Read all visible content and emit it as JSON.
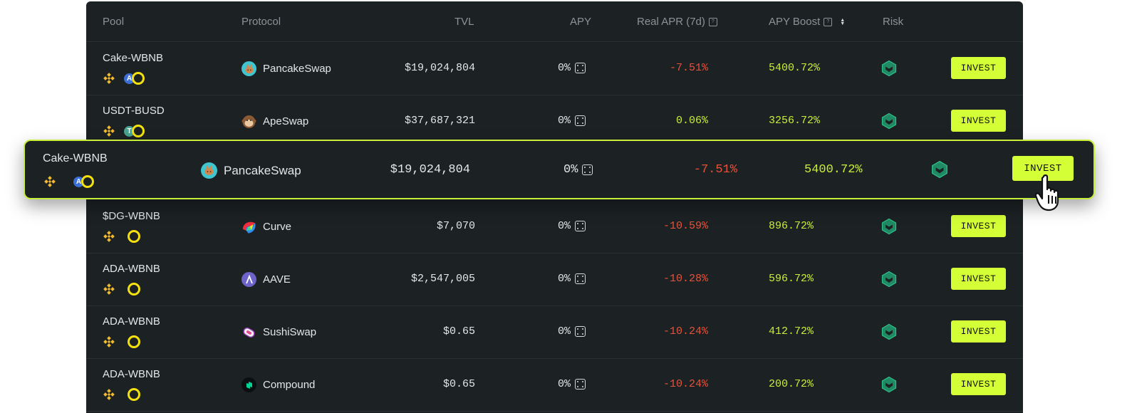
{
  "headers": {
    "pool": "Pool",
    "protocol": "Protocol",
    "tvl": "TVL",
    "apy": "APY",
    "real_apr": "Real APR (7d)",
    "apy_boost": "APY Boost",
    "risk": "Risk",
    "help_icon": "?"
  },
  "rows": [
    {
      "pool": "Cake-WBNB",
      "token_letter": "A",
      "protocol": "PancakeSwap",
      "logo": "pancakeswap-logo",
      "tvl": "$19,024,804",
      "apy": "0%",
      "real_apr": "-7.51%",
      "apy_boost": "5400.72%",
      "invest": "INVEST"
    },
    {
      "pool": "USDT-BUSD",
      "token_letter": "T",
      "protocol": "ApeSwap",
      "logo": "apeswap-logo",
      "tvl": "$37,687,321",
      "apy": "0%",
      "real_apr": "0.06%",
      "apy_boost": "3256.72%",
      "invest": "INVEST"
    },
    {
      "pool": "$DG-WBNB",
      "token_letter": "",
      "protocol": "Curve",
      "logo": "curve-logo",
      "tvl": "$7,070",
      "apy": "0%",
      "real_apr": "-10.59%",
      "apy_boost": "896.72%",
      "invest": "INVEST"
    },
    {
      "pool": "ADA-WBNB",
      "token_letter": "",
      "protocol": "AAVE",
      "logo": "aave-logo",
      "tvl": "$2,547,005",
      "apy": "0%",
      "real_apr": "-10.28%",
      "apy_boost": "596.72%",
      "invest": "INVEST"
    },
    {
      "pool": "ADA-WBNB",
      "token_letter": "",
      "protocol": "SushiSwap",
      "logo": "sushiswap-logo",
      "tvl": "$0.65",
      "apy": "0%",
      "real_apr": "-10.24%",
      "apy_boost": "412.72%",
      "invest": "INVEST"
    },
    {
      "pool": "ADA-WBNB",
      "token_letter": "",
      "protocol": "Compound",
      "logo": "compound-logo",
      "tvl": "$0.65",
      "apy": "0%",
      "real_apr": "-10.24%",
      "apy_boost": "200.72%",
      "invest": "INVEST"
    }
  ],
  "highlight": {
    "pool": "Cake-WBNB",
    "token_letter": "A",
    "protocol": "PancakeSwap",
    "tvl": "$19,024,804",
    "apy": "0%",
    "real_apr": "-7.51%",
    "apy_boost": "5400.72%",
    "invest": "INVEST"
  },
  "colors": {
    "accent": "#d4ff36",
    "negative": "#e8523a",
    "positive": "#c7ef39",
    "background": "#1c2123",
    "risk": "#2fbf8a"
  },
  "icons": [
    "bnb-chain-icon",
    "token-icon",
    "dice-icon",
    "risk-shield-icon",
    "hand-pointer-cursor-icon",
    "sort-icon",
    "help-icon"
  ]
}
